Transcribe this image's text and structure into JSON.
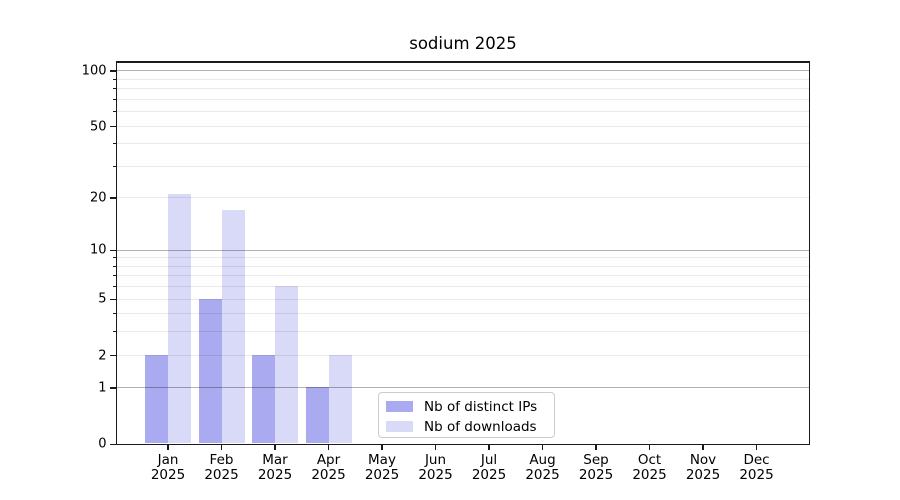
{
  "chart_data": {
    "type": "bar",
    "title": "sodium 2025",
    "year_label": "2025",
    "categories": [
      "Jan",
      "Feb",
      "Mar",
      "Apr",
      "May",
      "Jun",
      "Jul",
      "Aug",
      "Sep",
      "Oct",
      "Nov",
      "Dec"
    ],
    "series": [
      {
        "name": "Nb of distinct IPs",
        "color": "#aaaaf0",
        "values": [
          2,
          5,
          2,
          1,
          0,
          0,
          0,
          0,
          0,
          0,
          0,
          0
        ]
      },
      {
        "name": "Nb of downloads",
        "color": "#d9d9f8",
        "values": [
          21,
          17,
          6,
          2,
          0,
          0,
          0,
          0,
          0,
          0,
          0,
          0
        ]
      }
    ],
    "yscale": "log1p",
    "ylim": [
      0,
      113
    ],
    "yticks": [
      0,
      1,
      2,
      5,
      10,
      20,
      50,
      100
    ],
    "major_gridlines": [
      1,
      10,
      100
    ],
    "minor_gridlines": [
      2,
      3,
      4,
      5,
      6,
      7,
      8,
      9,
      20,
      30,
      40,
      50,
      60,
      70,
      80,
      90
    ],
    "grid": "on",
    "legend_position": "lower center inside axes",
    "colors": {
      "major_grid": "#b5b5b5",
      "minor_grid": "#e8e8e8",
      "axis": "#1a1a1a",
      "background": "#ffffff"
    }
  }
}
